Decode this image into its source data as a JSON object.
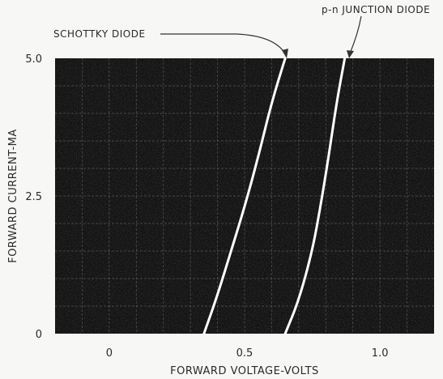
{
  "chart_data": {
    "type": "line",
    "xlabel": "FORWARD VOLTAGE-VOLTS",
    "ylabel": "FORWARD CURRENT-MA",
    "x_ticks": [
      {
        "value": 0,
        "label": "0"
      },
      {
        "value": 0.5,
        "label": "0.5"
      },
      {
        "value": 1.0,
        "label": "1.0"
      }
    ],
    "y_ticks": [
      {
        "value": 0,
        "label": "0"
      },
      {
        "value": 2.5,
        "label": "2.5"
      },
      {
        "value": 5.0,
        "label": "5.0"
      }
    ],
    "xlim": [
      -0.2,
      1.2
    ],
    "ylim": [
      0,
      5
    ],
    "grid": true,
    "series": [
      {
        "name": "SCHOTTKY DIODE",
        "x": [
          0.35,
          0.4,
          0.45,
          0.5,
          0.55,
          0.6,
          0.65
        ],
        "y": [
          0,
          0.7,
          1.5,
          2.3,
          3.2,
          4.2,
          5.0
        ]
      },
      {
        "name": "p-n JUNCTION DIODE",
        "x": [
          0.65,
          0.7,
          0.75,
          0.78,
          0.81,
          0.84,
          0.87
        ],
        "y": [
          0,
          0.6,
          1.5,
          2.3,
          3.2,
          4.2,
          5.0
        ]
      }
    ],
    "colors": {
      "plot_background": "#141414",
      "curve": "#ffffff",
      "grid": "#9a9a9a"
    }
  }
}
